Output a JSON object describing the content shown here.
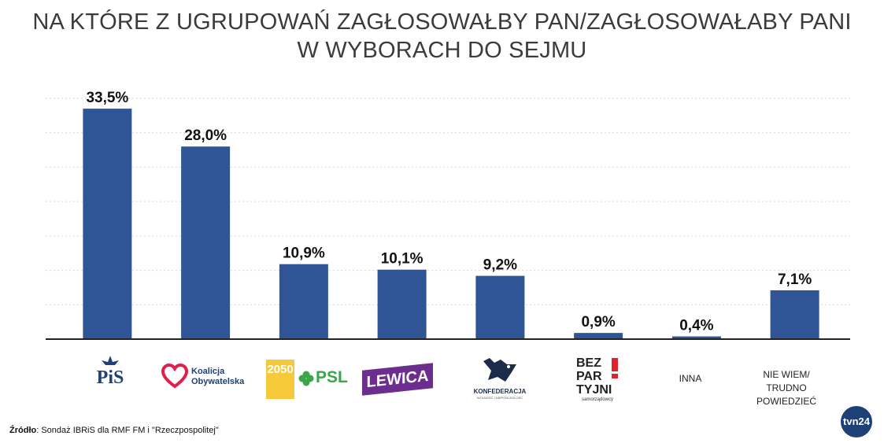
{
  "title_lines": [
    "NA KTÓRE Z UGRUPOWAŃ ZAGŁOSOWAŁBY PAN/ZAGŁOSOWAŁABY PANI",
    "W WYBORACH DO SEJMU"
  ],
  "chart_data": {
    "type": "bar",
    "categories": [
      "PiS",
      "Koalicja Obywatelska",
      "2050 PSL",
      "LEWICA",
      "KONFEDERACJA",
      "BEZPARTYJNI samorządowcy",
      "INNA",
      "NIE WIEM/ TRUDNO POWIEDZIEĆ"
    ],
    "values": [
      33.5,
      28.0,
      10.9,
      10.1,
      9.2,
      0.9,
      0.4,
      7.1
    ],
    "value_labels": [
      "33,5%",
      "28,0%",
      "10,9%",
      "10,1%",
      "9,2%",
      "0,9%",
      "0,4%",
      "7,1%"
    ],
    "ylim": [
      0,
      35
    ],
    "grid": true,
    "bar_color": "#2f5596"
  },
  "logos": {
    "pis": "PiS",
    "ko_line1": "Koalicja",
    "ko_line2": "Obywatelska",
    "psl_2050": "2050",
    "psl": "PSL",
    "lewica": "LEWICA",
    "konf": "KONFEDERACJA",
    "konf_sub": "WOLNOŚĆ I NIEPODLEGŁOŚĆ",
    "bez1": "BEZ",
    "bez2": "PAR",
    "bez3": "TYJNI",
    "bez_sub": "samorządowcy"
  },
  "labels": {
    "inna": "INNA",
    "niewiem1": "NIE WIEM/",
    "niewiem2": "TRUDNO POWIEDZIEĆ"
  },
  "source": {
    "prefix": "Źródło",
    "text": ": Sondaż IBRiS dla RMF FM i \"Rzeczpospolitej\""
  },
  "brand": "tvn24"
}
